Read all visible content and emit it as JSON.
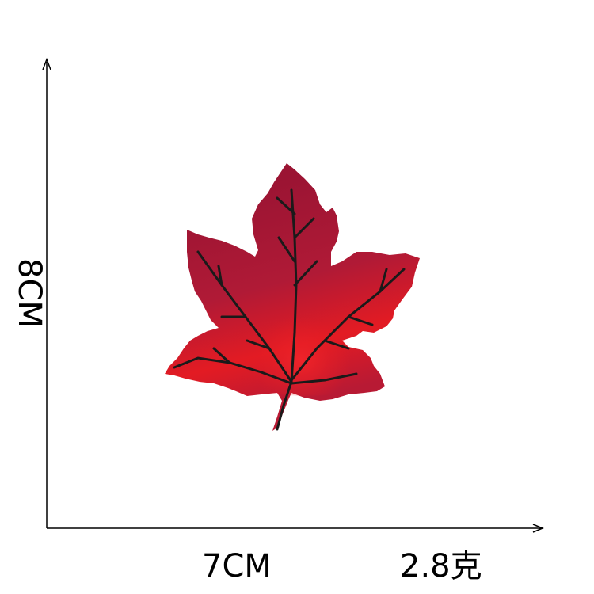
{
  "dimensions": {
    "width_label": "7CM",
    "height_label": "8CM",
    "weight_label": "2.8克"
  },
  "product": {
    "image": "maple-leaf-embroidery-patch",
    "colors": {
      "dark_red": "#9b1433",
      "mid_red": "#b81a34",
      "bright_red": "#e31b23",
      "vein": "#1a1a1a"
    }
  }
}
